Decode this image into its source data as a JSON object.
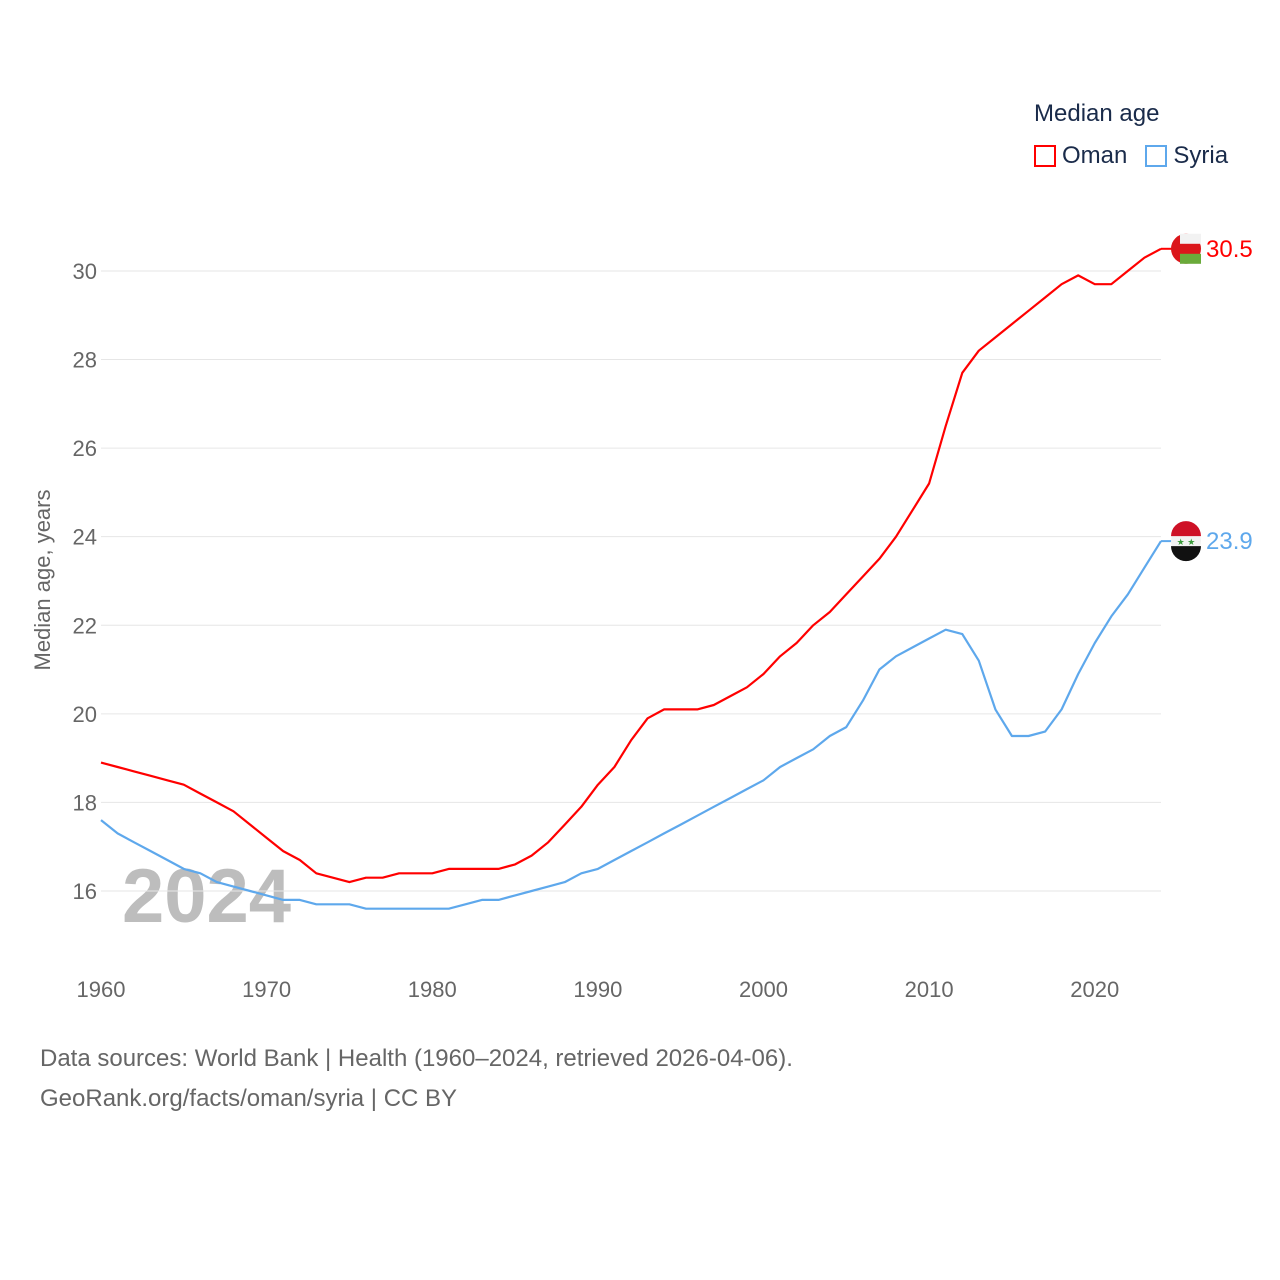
{
  "chart_data": {
    "type": "line",
    "title": "",
    "xlabel": "",
    "ylabel": "Median age, years",
    "ylim": [
      15.0,
      31.0
    ],
    "xlim": [
      1960,
      2024
    ],
    "yticks": [
      16,
      18,
      20,
      22,
      24,
      26,
      28,
      30
    ],
    "xticks": [
      1960,
      1970,
      1980,
      1990,
      2000,
      2010,
      2020
    ],
    "grid": true,
    "legend": {
      "title": "Median age",
      "placement": "top-right"
    },
    "watermark_year": "2024",
    "x": [
      1960,
      1961,
      1962,
      1963,
      1964,
      1965,
      1966,
      1967,
      1968,
      1969,
      1970,
      1971,
      1972,
      1973,
      1974,
      1975,
      1976,
      1977,
      1978,
      1979,
      1980,
      1981,
      1982,
      1983,
      1984,
      1985,
      1986,
      1987,
      1988,
      1989,
      1990,
      1991,
      1992,
      1993,
      1994,
      1995,
      1996,
      1997,
      1998,
      1999,
      2000,
      2001,
      2002,
      2003,
      2004,
      2005,
      2006,
      2007,
      2008,
      2009,
      2010,
      2011,
      2012,
      2013,
      2014,
      2015,
      2016,
      2017,
      2018,
      2019,
      2020,
      2021,
      2022,
      2023,
      2024
    ],
    "series": [
      {
        "name": "Oman",
        "color": "#ff0000",
        "end_label": "30.5",
        "values": [
          18.9,
          18.8,
          18.7,
          18.6,
          18.5,
          18.4,
          18.2,
          18.0,
          17.8,
          17.5,
          17.2,
          16.9,
          16.7,
          16.4,
          16.3,
          16.2,
          16.3,
          16.3,
          16.4,
          16.4,
          16.4,
          16.5,
          16.5,
          16.5,
          16.5,
          16.6,
          16.8,
          17.1,
          17.5,
          17.9,
          18.4,
          18.8,
          19.4,
          19.9,
          20.1,
          20.1,
          20.1,
          20.2,
          20.4,
          20.6,
          20.9,
          21.3,
          21.6,
          22.0,
          22.3,
          22.7,
          23.1,
          23.5,
          24.0,
          24.6,
          25.2,
          26.5,
          27.7,
          28.2,
          28.5,
          28.8,
          29.1,
          29.4,
          29.7,
          29.9,
          29.7,
          29.7,
          30.0,
          30.3,
          30.5
        ]
      },
      {
        "name": "Syria",
        "color": "#5ea8ec",
        "end_label": "23.9",
        "values": [
          17.6,
          17.3,
          17.1,
          16.9,
          16.7,
          16.5,
          16.4,
          16.2,
          16.1,
          16.0,
          15.9,
          15.8,
          15.8,
          15.7,
          15.7,
          15.7,
          15.6,
          15.6,
          15.6,
          15.6,
          15.6,
          15.6,
          15.7,
          15.8,
          15.8,
          15.9,
          16.0,
          16.1,
          16.2,
          16.4,
          16.5,
          16.7,
          16.9,
          17.1,
          17.3,
          17.5,
          17.7,
          17.9,
          18.1,
          18.3,
          18.5,
          18.8,
          19.0,
          19.2,
          19.5,
          19.7,
          20.3,
          21.0,
          21.3,
          21.5,
          21.7,
          21.9,
          21.8,
          21.2,
          20.1,
          19.5,
          19.5,
          19.6,
          20.1,
          20.9,
          21.6,
          22.2,
          22.7,
          23.3,
          23.9
        ]
      }
    ]
  },
  "footer": {
    "line1": "Data sources: World Bank | Health (1960–2024, retrieved 2026-04-06).",
    "line2": "GeoRank.org/facts/oman/syria | CC BY"
  }
}
